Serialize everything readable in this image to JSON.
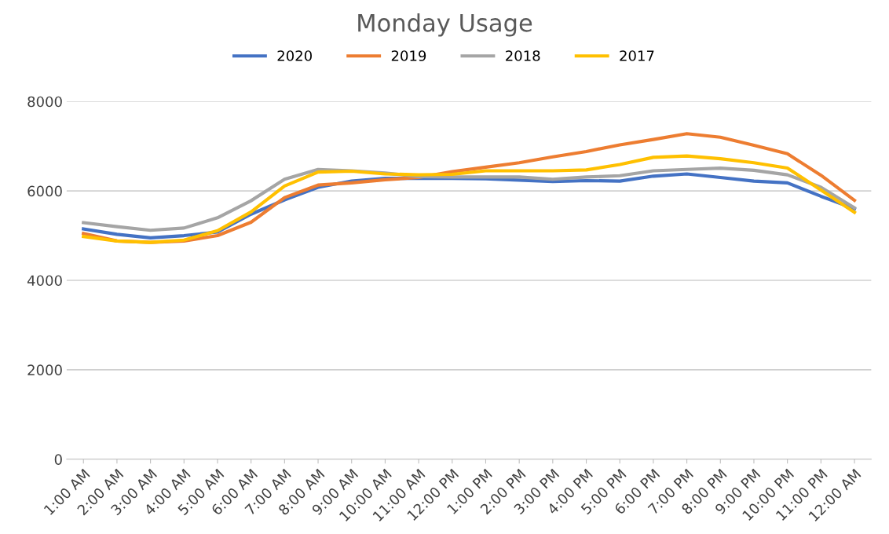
{
  "chart_data": {
    "type": "line",
    "title": "Monday Usage",
    "categories": [
      "1:00 AM",
      "2:00 AM",
      "3:00 AM",
      "4:00 AM",
      "5:00 AM",
      "6:00 AM",
      "7:00 AM",
      "8:00 AM",
      "9:00 AM",
      "10:00 AM",
      "11:00 AM",
      "12:00 PM",
      "1:00 PM",
      "2:00 PM",
      "3:00 PM",
      "4:00 PM",
      "5:00 PM",
      "6:00 PM",
      "7:00 PM",
      "8:00 PM",
      "9:00 PM",
      "10:00 PM",
      "11:00 PM",
      "12:00 AM"
    ],
    "series": [
      {
        "name": "2020",
        "color": "#4472c4",
        "values": [
          5150,
          5030,
          4950,
          5000,
          5080,
          5480,
          5800,
          6080,
          6220,
          6280,
          6280,
          6280,
          6270,
          6240,
          6210,
          6230,
          6220,
          6330,
          6380,
          6300,
          6220,
          6180,
          5880,
          5600
        ]
      },
      {
        "name": "2019",
        "color": "#ed7d31",
        "values": [
          5050,
          4880,
          4850,
          4880,
          5000,
          5300,
          5850,
          6130,
          6180,
          6250,
          6300,
          6430,
          6530,
          6630,
          6760,
          6880,
          7030,
          7150,
          7280,
          7200,
          7020,
          6830,
          6350,
          5790
        ]
      },
      {
        "name": "2018",
        "color": "#a5a5a5",
        "values": [
          5290,
          5200,
          5120,
          5170,
          5400,
          5780,
          6260,
          6480,
          6450,
          6400,
          6320,
          6310,
          6310,
          6310,
          6260,
          6310,
          6340,
          6450,
          6480,
          6510,
          6460,
          6360,
          6080,
          5620
        ]
      },
      {
        "name": "2017",
        "color": "#ffc000",
        "values": [
          4980,
          4880,
          4850,
          4900,
          5110,
          5530,
          6110,
          6420,
          6440,
          6380,
          6360,
          6370,
          6450,
          6450,
          6450,
          6470,
          6590,
          6750,
          6780,
          6720,
          6630,
          6510,
          6020,
          5520
        ]
      }
    ],
    "ylim": [
      0,
      8000
    ],
    "yticks": [
      0,
      2000,
      4000,
      6000,
      8000
    ],
    "grid": "y",
    "legend": "top",
    "marker": "none",
    "line_style": "solid"
  }
}
